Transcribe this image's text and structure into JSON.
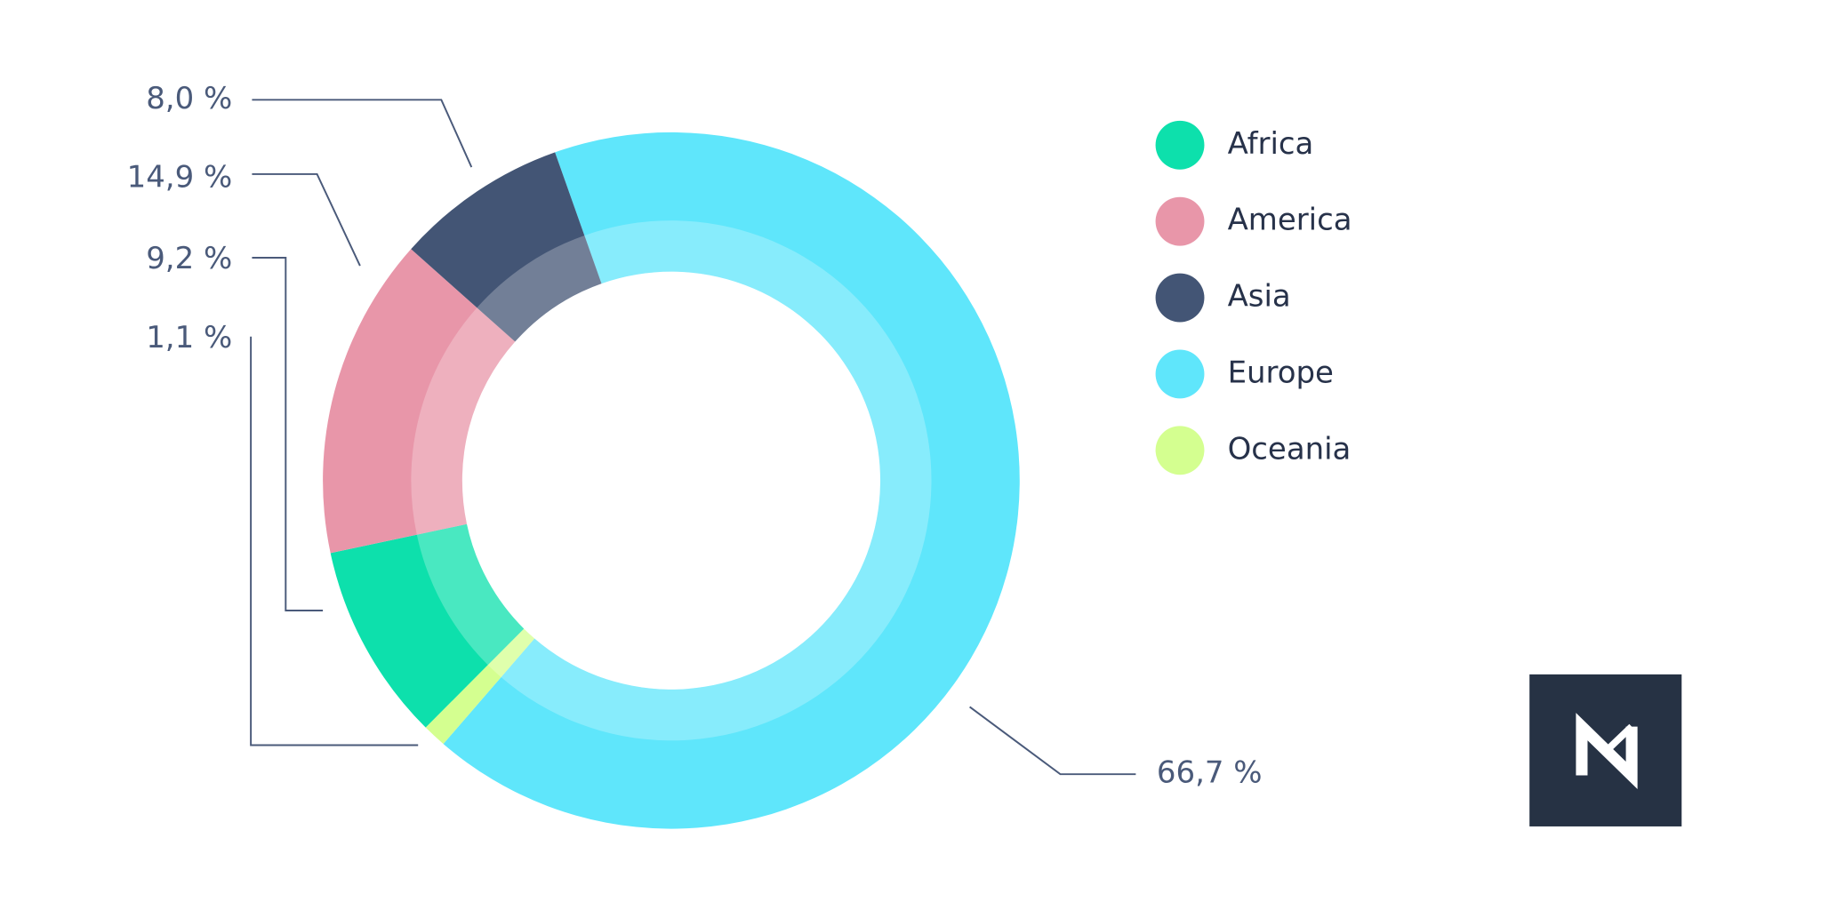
{
  "chart_data": {
    "type": "donut",
    "categories": [
      "Africa",
      "America",
      "Asia",
      "Europe",
      "Oceania"
    ],
    "values": [
      9.2,
      14.9,
      8.0,
      66.7,
      1.1
    ],
    "value_labels": [
      "9,2 %",
      "14,9 %",
      "8,0 %",
      "66,7 %",
      "1,1 %"
    ],
    "colors": [
      "#0de0ac",
      "#e896a9",
      "#435575",
      "#5fe6fb",
      "#d4ff90"
    ]
  }
}
